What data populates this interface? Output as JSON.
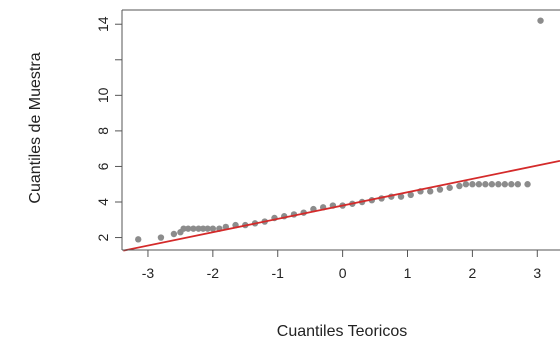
{
  "chart_data": {
    "type": "scatter",
    "title": "",
    "xlabel": "Cuantiles Teoricos",
    "ylabel": "Cuantiles de Muestra",
    "xlim": [
      -3.4,
      3.3
    ],
    "ylim": [
      1.3,
      14.8
    ],
    "x_ticks": [
      -3,
      -2,
      -1,
      0,
      1,
      2,
      3
    ],
    "x_tick_labels": [
      "-3",
      "-2",
      "-1",
      "0",
      "1",
      "2",
      "3"
    ],
    "y_ticks": [
      2,
      4,
      6,
      8,
      10,
      14
    ],
    "y_tick_labels": [
      "2",
      "4",
      "6",
      "8",
      "10",
      "14"
    ],
    "grid": false,
    "point_color": "#8c8c8c",
    "line_color": "#d42a2a",
    "reference_line": {
      "intercept": 3.8,
      "slope": 0.75
    },
    "series": [
      {
        "x": [
          -3.15,
          -2.8,
          -2.6,
          -2.5,
          -2.45,
          -2.38,
          -2.3,
          -2.22,
          -2.15,
          -2.08,
          -2.0,
          -1.9,
          -1.8,
          -1.65,
          -1.5,
          -1.35,
          -1.2,
          -1.05,
          -0.9,
          -0.75,
          -0.6,
          -0.45,
          -0.3,
          -0.15,
          0.0,
          0.15,
          0.3,
          0.45,
          0.6,
          0.75,
          0.9,
          1.05,
          1.2,
          1.35,
          1.5,
          1.65,
          1.8,
          1.9,
          2.0,
          2.1,
          2.2,
          2.3,
          2.4,
          2.5,
          2.6,
          2.7,
          2.85,
          3.05
        ],
        "y": [
          1.9,
          2.0,
          2.2,
          2.3,
          2.5,
          2.5,
          2.5,
          2.5,
          2.5,
          2.5,
          2.5,
          2.5,
          2.6,
          2.7,
          2.7,
          2.8,
          2.9,
          3.1,
          3.2,
          3.3,
          3.4,
          3.6,
          3.7,
          3.8,
          3.8,
          3.9,
          4.0,
          4.1,
          4.2,
          4.3,
          4.3,
          4.4,
          4.6,
          4.6,
          4.7,
          4.8,
          4.9,
          5.0,
          5.0,
          5.0,
          5.0,
          5.0,
          5.0,
          5.0,
          5.0,
          5.0,
          5.0,
          14.2
        ]
      }
    ]
  }
}
